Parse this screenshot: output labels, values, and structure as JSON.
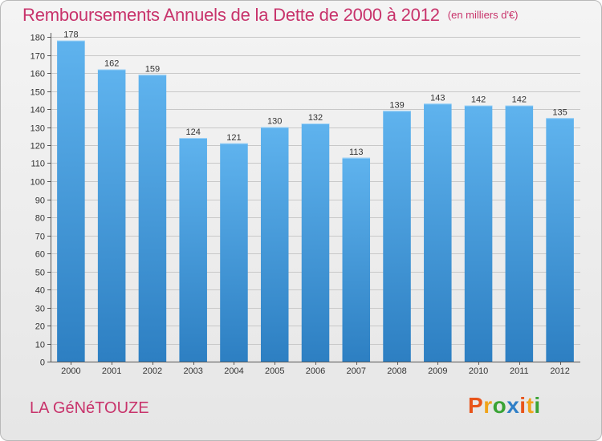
{
  "title": "Remboursements Annuels de la Dette de 2000 à 2012",
  "title_unit": "(en milliers d'€)",
  "commune": "LA GéNéTOUZE",
  "brand": {
    "letters": [
      "P",
      "r",
      "o",
      "x",
      "i",
      "t",
      "i"
    ],
    "colors": [
      "#e8541a",
      "#f0a31a",
      "#3aa335",
      "#2f7fc7",
      "#e8541a",
      "#f0a31a",
      "#3aa335"
    ]
  },
  "colors": {
    "title": "#c8336b",
    "bar_light": "#5fb3ee",
    "bar_dark": "#2d7fc2",
    "grid": "#c8c8c8"
  },
  "chart_data": {
    "type": "bar",
    "title": "Remboursements Annuels de la Dette de 2000 à 2012",
    "xlabel": "",
    "ylabel": "",
    "ylim": [
      0,
      180
    ],
    "yticks": [
      0,
      10,
      20,
      30,
      40,
      50,
      60,
      70,
      80,
      90,
      100,
      110,
      120,
      130,
      140,
      150,
      160,
      170,
      180
    ],
    "grid": true,
    "categories": [
      "2000",
      "2001",
      "2002",
      "2003",
      "2004",
      "2005",
      "2006",
      "2007",
      "2008",
      "2009",
      "2010",
      "2011",
      "2012"
    ],
    "values": [
      178,
      162,
      159,
      124,
      121,
      130,
      132,
      113,
      139,
      143,
      142,
      142,
      135
    ]
  }
}
